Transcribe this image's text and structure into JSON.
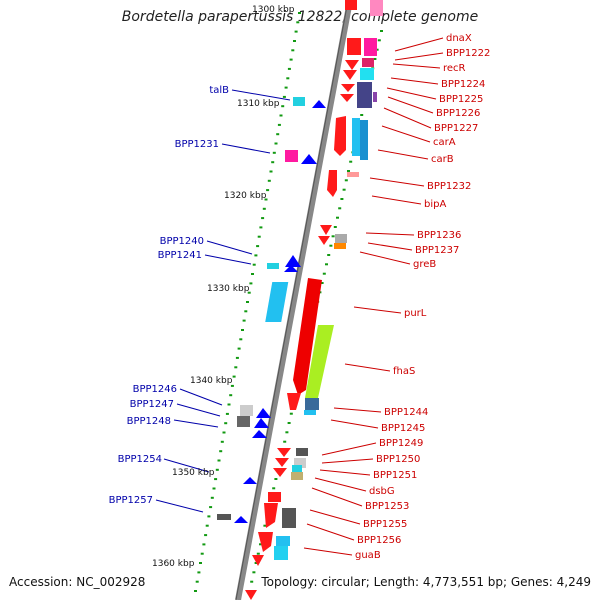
{
  "title": "Bordetella parapertussis 12822, complete genome",
  "footer": {
    "accession": "Accession: NC_002928",
    "topology": "Topology: circular; Length: 4,773,551 bp; Genes: 4,249"
  },
  "colors": {
    "forward": "#ff0000",
    "reverse": "#0000ff",
    "ticks": "#008000",
    "backbone": "#888888",
    "label_right": "#cc0000",
    "label_left": "#0000aa"
  },
  "scale": {
    "unit": "kbp",
    "ticks": [
      "1300 kbp",
      "1310 kbp",
      "1320 kbp",
      "1330 kbp",
      "1340 kbp",
      "1350 kbp",
      "1360 kbp"
    ]
  },
  "genes_right": [
    "dnaX",
    "BPP1222",
    "recR",
    "BPP1224",
    "BPP1225",
    "BPP1226",
    "BPP1227",
    "carA",
    "carB",
    "BPP1232",
    "bipA",
    "BPP1236",
    "BPP1237",
    "greB",
    "purL",
    "fhaS",
    "BPP1244",
    "BPP1245",
    "BPP1249",
    "BPP1250",
    "BPP1251",
    "dsbG",
    "BPP1253",
    "BPP1255",
    "BPP1256",
    "guaB"
  ],
  "genes_left": [
    "talB",
    "BPP1231",
    "BPP1240",
    "BPP1241",
    "BPP1246",
    "BPP1247",
    "BPP1248",
    "BPP1254",
    "BPP1257"
  ]
}
